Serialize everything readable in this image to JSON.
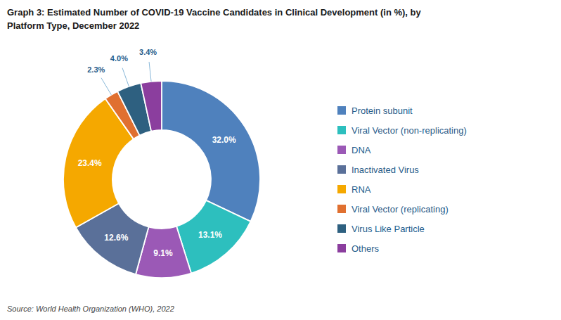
{
  "chart_data": {
    "type": "donut",
    "title": [
      "Graph 3: Estimated Number of COVID-19 Vaccine Candidates in Clinical Development (in %), by",
      "Platform Type, December 2022"
    ],
    "annotations": [
      "Source: World Health Organization (WHO), 2022"
    ],
    "categories": [
      "Protein subunit",
      "Viral Vector (non-replicating)",
      "DNA",
      "Inactivated Virus",
      "RNA",
      "Viral Vector (replicating)",
      "Virus Like Particle",
      "Others"
    ],
    "values": [
      32.0,
      13.1,
      9.1,
      12.6,
      23.4,
      2.3,
      4.0,
      3.4
    ],
    "value_labels": [
      "32.0%",
      "13.1%",
      "9.1%",
      "12.6%",
      "23.4%",
      "2.3%",
      "4.0%",
      "3.4%"
    ],
    "colors": [
      "#4F81BD",
      "#2DBFBE",
      "#9B59B6",
      "#5A7099",
      "#F5A800",
      "#E07030",
      "#2E6080",
      "#8B3E9E"
    ],
    "data_labels": true,
    "legend": "right"
  }
}
